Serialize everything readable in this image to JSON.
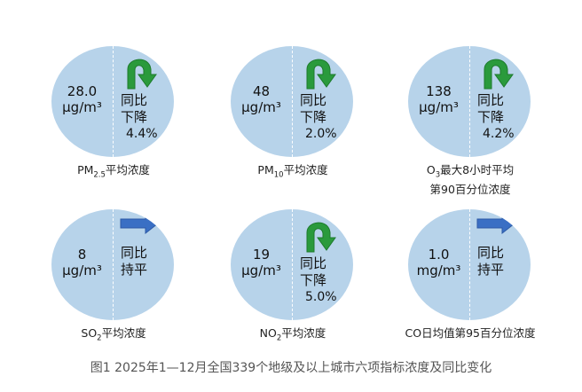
{
  "indicators": [
    {
      "value": "28.0",
      "unit": "μg/m³",
      "trend_line1": "同比",
      "trend_line2": "下降",
      "change": "4.4%",
      "label_pre": "PM",
      "label_sub": "2.5",
      "label_post": "平均浓度",
      "trend_icon": "curved-down-arrow-icon",
      "trend_color": "#2a9a3c"
    },
    {
      "value": "48",
      "unit": "μg/m³",
      "trend_line1": "同比",
      "trend_line2": "下降",
      "change": "2.0%",
      "label_pre": "PM",
      "label_sub": "10",
      "label_post": "平均浓度",
      "trend_icon": "curved-down-arrow-icon",
      "trend_color": "#2a9a3c"
    },
    {
      "value": "138",
      "unit": "μg/m³",
      "trend_line1": "同比",
      "trend_line2": "下降",
      "change": "4.2%",
      "label_pre": "O",
      "label_sub": "3",
      "label_post": "最大8小时平均",
      "label_line2": "第90百分位浓度",
      "trend_icon": "curved-down-arrow-icon",
      "trend_color": "#2a9a3c"
    },
    {
      "value": "8",
      "unit": "μg/m³",
      "trend_line1": "同比",
      "trend_line2": "持平",
      "label_pre": "SO",
      "label_sub": "2",
      "label_post": "平均浓度",
      "trend_icon": "right-arrow-icon",
      "trend_color": "#3a6fc4"
    },
    {
      "value": "19",
      "unit": "μg/m³",
      "trend_line1": "同比",
      "trend_line2": "下降",
      "change": "5.0%",
      "label_pre": "NO",
      "label_sub": "2",
      "label_post": "平均浓度",
      "trend_icon": "curved-down-arrow-icon",
      "trend_color": "#2a9a3c"
    },
    {
      "value": "1.0",
      "unit": "mg/m³",
      "trend_line1": "同比",
      "trend_line2": "持平",
      "label_pre": "CO日均值第95百分位浓度",
      "trend_icon": "right-arrow-icon",
      "trend_color": "#3a6fc4"
    }
  ],
  "caption": "图1 2025年1—12月全国339个地级及以上城市六项指标浓度及同比变化"
}
